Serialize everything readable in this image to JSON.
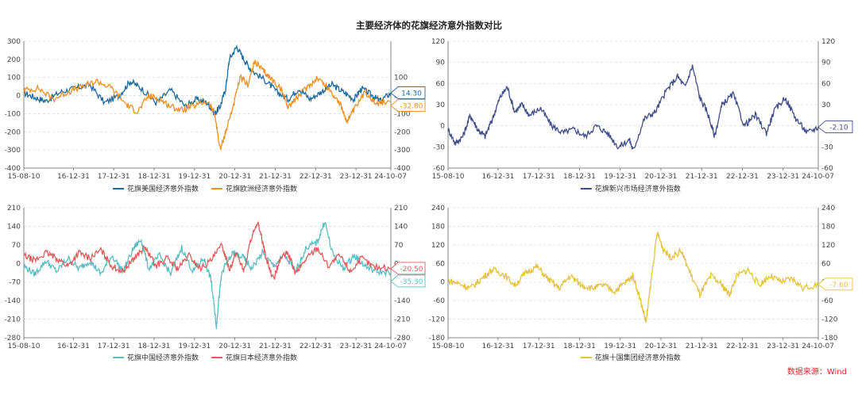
{
  "title": "主要经济体的花旗经济意外指数对比",
  "source": "数据来源：Wind",
  "chart_data": [
    {
      "id": "tl",
      "type": "line",
      "dual_axis": true,
      "ylim_left": [
        -400,
        300
      ],
      "yticks_left": [
        "300",
        "200",
        "100",
        "0",
        "-100",
        "-200",
        "-300",
        "-400"
      ],
      "ylim_right": [
        -400,
        300
      ],
      "yticks_right": [
        "100",
        "0",
        "-100",
        "-200",
        "-300",
        "-400"
      ],
      "yticks_right_values": [
        100,
        0,
        -100,
        -200,
        -300,
        -400
      ],
      "xticks": [
        "15-08-10",
        "16-12-31",
        "17-12-31",
        "18-12-31",
        "19-12-31",
        "20-12-31",
        "21-12-31",
        "22-12-31",
        "23-12-31",
        "24-10-07"
      ],
      "grid": "horizontal-dashed",
      "legend": "bottom-center",
      "series": [
        {
          "name": "花旗美国经济意外指数",
          "color": "#1f6b9f",
          "last_label": "14.30",
          "points": [
            [
              0,
              15
            ],
            [
              0.03,
              -10
            ],
            [
              0.06,
              -30
            ],
            [
              0.1,
              20
            ],
            [
              0.14,
              40
            ],
            [
              0.18,
              60
            ],
            [
              0.22,
              -40
            ],
            [
              0.26,
              0
            ],
            [
              0.29,
              80
            ],
            [
              0.32,
              40
            ],
            [
              0.36,
              -40
            ],
            [
              0.4,
              30
            ],
            [
              0.44,
              -60
            ],
            [
              0.47,
              -20
            ],
            [
              0.5,
              -40
            ],
            [
              0.52,
              -100
            ],
            [
              0.535,
              -60
            ],
            [
              0.55,
              40
            ],
            [
              0.56,
              200
            ],
            [
              0.58,
              270
            ],
            [
              0.6,
              200
            ],
            [
              0.62,
              140
            ],
            [
              0.66,
              80
            ],
            [
              0.69,
              20
            ],
            [
              0.72,
              -20
            ],
            [
              0.75,
              40
            ],
            [
              0.78,
              -20
            ],
            [
              0.81,
              20
            ],
            [
              0.84,
              60
            ],
            [
              0.87,
              20
            ],
            [
              0.9,
              -20
            ],
            [
              0.92,
              40
            ],
            [
              0.95,
              0
            ],
            [
              0.97,
              -30
            ],
            [
              1,
              14
            ]
          ]
        },
        {
          "name": "花旗欧洲经济意外指数",
          "color": "#f0901e",
          "last_label": "-32.80",
          "points": [
            [
              0,
              30
            ],
            [
              0.04,
              40
            ],
            [
              0.08,
              -20
            ],
            [
              0.12,
              20
            ],
            [
              0.16,
              50
            ],
            [
              0.2,
              80
            ],
            [
              0.24,
              40
            ],
            [
              0.28,
              -50
            ],
            [
              0.31,
              -90
            ],
            [
              0.34,
              0
            ],
            [
              0.37,
              -20
            ],
            [
              0.4,
              -60
            ],
            [
              0.43,
              -80
            ],
            [
              0.46,
              -60
            ],
            [
              0.5,
              -30
            ],
            [
              0.52,
              -100
            ],
            [
              0.535,
              -300
            ],
            [
              0.55,
              -200
            ],
            [
              0.57,
              -60
            ],
            [
              0.59,
              100
            ],
            [
              0.61,
              60
            ],
            [
              0.63,
              190
            ],
            [
              0.65,
              140
            ],
            [
              0.67,
              100
            ],
            [
              0.7,
              40
            ],
            [
              0.72,
              -60
            ],
            [
              0.74,
              -20
            ],
            [
              0.77,
              40
            ],
            [
              0.8,
              100
            ],
            [
              0.83,
              40
            ],
            [
              0.86,
              -40
            ],
            [
              0.88,
              -140
            ],
            [
              0.9,
              -80
            ],
            [
              0.93,
              20
            ],
            [
              0.96,
              -40
            ],
            [
              1,
              -33
            ]
          ]
        }
      ]
    },
    {
      "id": "tr",
      "type": "line",
      "dual_axis": true,
      "ylim_left": [
        -60,
        120
      ],
      "yticks_left": [
        "120",
        "90",
        "60",
        "30",
        "0",
        "-30",
        "-60"
      ],
      "ylim_right": [
        -60,
        120
      ],
      "yticks_right": [
        "120",
        "90",
        "60",
        "30",
        "0",
        "-30",
        "-60"
      ],
      "xticks": [
        "15-08-10",
        "16-12-31",
        "17-12-31",
        "18-12-31",
        "19-12-31",
        "20-12-31",
        "21-12-31",
        "22-12-31",
        "23-12-31",
        "24-10-07"
      ],
      "grid": "horizontal-dashed",
      "legend": "bottom-center",
      "series": [
        {
          "name": "花旗新兴市场经济意外指数",
          "color": "#404f8a",
          "last_label": "-2.10",
          "points": [
            [
              0,
              -5
            ],
            [
              0.02,
              -25
            ],
            [
              0.04,
              -15
            ],
            [
              0.06,
              15
            ],
            [
              0.08,
              -5
            ],
            [
              0.1,
              -15
            ],
            [
              0.12,
              10
            ],
            [
              0.14,
              40
            ],
            [
              0.16,
              55
            ],
            [
              0.18,
              20
            ],
            [
              0.2,
              30
            ],
            [
              0.22,
              15
            ],
            [
              0.25,
              25
            ],
            [
              0.28,
              0
            ],
            [
              0.31,
              -10
            ],
            [
              0.34,
              -5
            ],
            [
              0.37,
              -15
            ],
            [
              0.4,
              0
            ],
            [
              0.43,
              -10
            ],
            [
              0.46,
              -30
            ],
            [
              0.49,
              -20
            ],
            [
              0.5,
              -35
            ],
            [
              0.53,
              10
            ],
            [
              0.56,
              20
            ],
            [
              0.59,
              50
            ],
            [
              0.62,
              70
            ],
            [
              0.64,
              55
            ],
            [
              0.66,
              85
            ],
            [
              0.68,
              40
            ],
            [
              0.7,
              20
            ],
            [
              0.72,
              -15
            ],
            [
              0.74,
              30
            ],
            [
              0.77,
              45
            ],
            [
              0.8,
              0
            ],
            [
              0.83,
              15
            ],
            [
              0.86,
              -10
            ],
            [
              0.88,
              20
            ],
            [
              0.91,
              40
            ],
            [
              0.94,
              10
            ],
            [
              0.97,
              -10
            ],
            [
              1,
              -2
            ]
          ]
        }
      ]
    },
    {
      "id": "bl",
      "type": "line",
      "dual_axis": true,
      "ylim_left": [
        -280,
        210
      ],
      "yticks_left": [
        "210",
        "140",
        "70",
        "0",
        "-70",
        "-140",
        "-210",
        "-280"
      ],
      "ylim_right": [
        -280,
        210
      ],
      "yticks_right": [
        "210",
        "140",
        "70",
        "0",
        "-70",
        "-140",
        "-210",
        "-280"
      ],
      "xticks": [
        "15-08-10",
        "16-12-31",
        "17-12-31",
        "18-12-31",
        "19-12-31",
        "20-12-31",
        "21-12-31",
        "22-12-31",
        "23-12-31",
        "24-10-07"
      ],
      "grid": "horizontal-dashed",
      "legend": "bottom-center",
      "series": [
        {
          "name": "花旗中国经济意外指数",
          "color": "#5bbdc3",
          "last_label": "-35.30",
          "points": [
            [
              0,
              -10
            ],
            [
              0.03,
              -40
            ],
            [
              0.06,
              10
            ],
            [
              0.09,
              -30
            ],
            [
              0.12,
              20
            ],
            [
              0.15,
              -20
            ],
            [
              0.18,
              10
            ],
            [
              0.21,
              -40
            ],
            [
              0.24,
              30
            ],
            [
              0.27,
              -30
            ],
            [
              0.3,
              60
            ],
            [
              0.32,
              90
            ],
            [
              0.34,
              -20
            ],
            [
              0.37,
              30
            ],
            [
              0.4,
              -40
            ],
            [
              0.43,
              60
            ],
            [
              0.46,
              -30
            ],
            [
              0.49,
              20
            ],
            [
              0.51,
              -60
            ],
            [
              0.52,
              -180
            ],
            [
              0.525,
              -240
            ],
            [
              0.53,
              -150
            ],
            [
              0.54,
              -30
            ],
            [
              0.57,
              40
            ],
            [
              0.6,
              20
            ],
            [
              0.62,
              -20
            ],
            [
              0.65,
              40
            ],
            [
              0.68,
              -10
            ],
            [
              0.71,
              30
            ],
            [
              0.74,
              -30
            ],
            [
              0.77,
              60
            ],
            [
              0.8,
              80
            ],
            [
              0.82,
              160
            ],
            [
              0.84,
              40
            ],
            [
              0.87,
              -20
            ],
            [
              0.9,
              30
            ],
            [
              0.93,
              -10
            ],
            [
              0.96,
              -30
            ],
            [
              1,
              -35
            ]
          ]
        },
        {
          "name": "花旗日本经济意外指数",
          "color": "#e05c5c",
          "last_label": "-20.50",
          "points": [
            [
              0,
              30
            ],
            [
              0.03,
              10
            ],
            [
              0.06,
              40
            ],
            [
              0.09,
              20
            ],
            [
              0.12,
              -10
            ],
            [
              0.15,
              40
            ],
            [
              0.18,
              20
            ],
            [
              0.21,
              50
            ],
            [
              0.24,
              -10
            ],
            [
              0.27,
              -30
            ],
            [
              0.3,
              20
            ],
            [
              0.33,
              60
            ],
            [
              0.36,
              -10
            ],
            [
              0.39,
              20
            ],
            [
              0.42,
              -20
            ],
            [
              0.45,
              30
            ],
            [
              0.48,
              -20
            ],
            [
              0.51,
              10
            ],
            [
              0.54,
              70
            ],
            [
              0.56,
              -20
            ],
            [
              0.58,
              40
            ],
            [
              0.6,
              -30
            ],
            [
              0.62,
              100
            ],
            [
              0.64,
              150
            ],
            [
              0.66,
              20
            ],
            [
              0.68,
              -60
            ],
            [
              0.7,
              20
            ],
            [
              0.72,
              40
            ],
            [
              0.74,
              -40
            ],
            [
              0.77,
              20
            ],
            [
              0.8,
              60
            ],
            [
              0.83,
              -10
            ],
            [
              0.86,
              30
            ],
            [
              0.89,
              -30
            ],
            [
              0.92,
              20
            ],
            [
              0.95,
              -10
            ],
            [
              1,
              -20
            ]
          ]
        }
      ]
    },
    {
      "id": "br",
      "type": "line",
      "dual_axis": true,
      "ylim_left": [
        -180,
        240
      ],
      "yticks_left": [
        "240",
        "180",
        "120",
        "60",
        "0",
        "-60",
        "-120",
        "-180"
      ],
      "ylim_right": [
        -180,
        240
      ],
      "yticks_right": [
        "240",
        "180",
        "120",
        "60",
        "0",
        "-60",
        "-120",
        "-180"
      ],
      "xticks": [
        "15-08-10",
        "16-12-31",
        "17-12-31",
        "18-12-31",
        "19-12-31",
        "20-12-31",
        "21-12-31",
        "22-12-31",
        "23-12-31",
        "24-10-07"
      ],
      "grid": "horizontal-dashed",
      "legend": "bottom-center",
      "series": [
        {
          "name": "花旗十国集团经济意外指数",
          "color": "#e6c23a",
          "last_label": "-7.60",
          "points": [
            [
              0,
              5
            ],
            [
              0.03,
              -5
            ],
            [
              0.06,
              -20
            ],
            [
              0.09,
              10
            ],
            [
              0.12,
              40
            ],
            [
              0.15,
              25
            ],
            [
              0.18,
              -10
            ],
            [
              0.21,
              30
            ],
            [
              0.24,
              50
            ],
            [
              0.27,
              10
            ],
            [
              0.3,
              -20
            ],
            [
              0.33,
              20
            ],
            [
              0.36,
              -10
            ],
            [
              0.39,
              -20
            ],
            [
              0.42,
              -10
            ],
            [
              0.45,
              -30
            ],
            [
              0.48,
              0
            ],
            [
              0.5,
              20
            ],
            [
              0.52,
              -60
            ],
            [
              0.535,
              -130
            ],
            [
              0.55,
              20
            ],
            [
              0.565,
              160
            ],
            [
              0.58,
              110
            ],
            [
              0.6,
              80
            ],
            [
              0.63,
              100
            ],
            [
              0.65,
              40
            ],
            [
              0.68,
              -40
            ],
            [
              0.71,
              20
            ],
            [
              0.74,
              -10
            ],
            [
              0.76,
              -40
            ],
            [
              0.78,
              20
            ],
            [
              0.81,
              40
            ],
            [
              0.84,
              -10
            ],
            [
              0.87,
              20
            ],
            [
              0.9,
              0
            ],
            [
              0.93,
              10
            ],
            [
              0.96,
              -20
            ],
            [
              1,
              -8
            ]
          ]
        }
      ]
    }
  ]
}
